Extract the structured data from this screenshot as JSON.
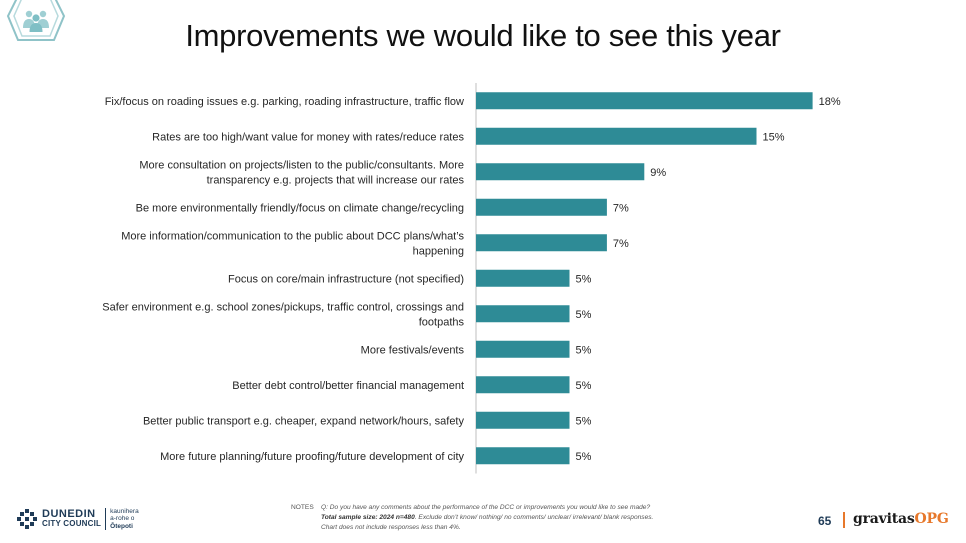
{
  "slide": {
    "title": "Improvements we would like to see this year",
    "page_number": "65"
  },
  "notes": {
    "label": "NOTES",
    "question": "Q: Do you have any comments about the performance of the DCC or improvements you would like to see made?",
    "sample_label": "Total sample size: 2024 n=480",
    "sample_rest": ". Exclude don’t know/ nothing/ no comments/ unclear/ irrelevant/ blank responses.",
    "chart_note": "Chart does not include responses less than 4%."
  },
  "footer": {
    "dcc_line1": "DUNEDIN",
    "dcc_line2": "CITY COUNCIL",
    "dcc_maori_1": "kaunihera",
    "dcc_maori_2": "a-rohe o",
    "dcc_maori_3": "Ōtepoti",
    "brand_main": "gravitas",
    "brand_accent": "OPG"
  },
  "colors": {
    "bar": "#2e8b96",
    "axis": "#bfbfbf",
    "brand_accent": "#e7782b",
    "dcc_navy": "#1f3b57"
  },
  "icons": {
    "top_left": "people-badge-icon",
    "dcc": "dcc-crest-icon"
  },
  "chart_data": {
    "type": "bar",
    "orientation": "horizontal",
    "categories": [
      [
        "Fix/focus on roading issues e.g. parking, roading infrastructure, traffic flow"
      ],
      [
        "Rates are too high/want value for money with rates/reduce rates"
      ],
      [
        "More consultation on projects/listen to the public/consultants. More",
        "transparency e.g. projects that will increase our rates"
      ],
      [
        "Be more environmentally friendly/focus on climate change/recycling"
      ],
      [
        "More information/communication to the public about DCC plans/what’s",
        "happening"
      ],
      [
        "Focus on core/main infrastructure (not specified)"
      ],
      [
        "Safer environment e.g. school zones/pickups, traffic control, crossings and",
        "footpaths"
      ],
      [
        "More festivals/events"
      ],
      [
        "Better debt control/better financial management"
      ],
      [
        "Better public transport e.g. cheaper, expand network/hours, safety"
      ],
      [
        "More future planning/future proofing/future development of city"
      ]
    ],
    "values": [
      18,
      15,
      9,
      7,
      7,
      5,
      5,
      5,
      5,
      5,
      5
    ],
    "value_labels": [
      "18%",
      "15%",
      "9%",
      "7%",
      "7%",
      "5%",
      "5%",
      "5%",
      "5%",
      "5%",
      "5%"
    ],
    "xlim": [
      0,
      20
    ],
    "grid": false,
    "legend": "none"
  }
}
